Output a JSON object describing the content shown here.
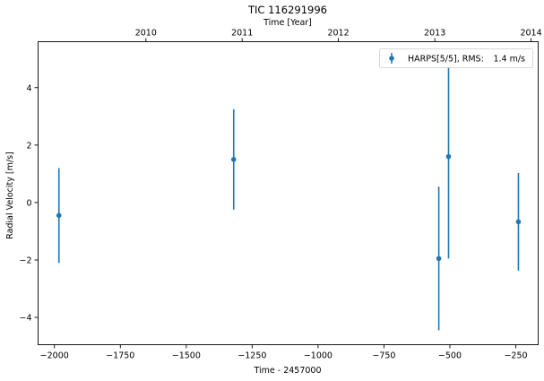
{
  "chart_data": {
    "type": "scatter",
    "title": "TIC 116291996",
    "xlabel": "Time - 2457000",
    "ylabel": "Radial Velocity [m/s]",
    "top_xlabel": "Time [Year]",
    "xlim": [
      -2062,
      -165
    ],
    "ylim": [
      -4.95,
      5.6
    ],
    "xticks": [
      -2000,
      -1750,
      -1500,
      -1250,
      -1000,
      -750,
      -500,
      -250
    ],
    "xtick_labels": [
      "−2000",
      "−1750",
      "−1500",
      "−1250",
      "−1000",
      "−750",
      "−500",
      "−250"
    ],
    "yticks": [
      -4,
      -2,
      0,
      2,
      4
    ],
    "ytick_labels": [
      "−4",
      "−2",
      "0",
      "2",
      "4"
    ],
    "top_ticks": [
      {
        "x": -1653,
        "label": "2010"
      },
      {
        "x": -1288,
        "label": "2011"
      },
      {
        "x": -923,
        "label": "2012"
      },
      {
        "x": -557,
        "label": "2013"
      },
      {
        "x": -192,
        "label": "2014"
      }
    ],
    "grid": false,
    "legend_position": "top-right",
    "series": [
      {
        "name": "HARPS[5/5], RMS:",
        "rms": "1.4 m/s",
        "color": "#1f77b4",
        "points": [
          {
            "x": -1983,
            "y": -0.45,
            "err": 1.65
          },
          {
            "x": -1320,
            "y": 1.5,
            "err": 1.75
          },
          {
            "x": -542,
            "y": -1.95,
            "err": 2.5
          },
          {
            "x": -505,
            "y": 1.6,
            "err": 3.55
          },
          {
            "x": -240,
            "y": -0.67,
            "err": 1.7
          }
        ]
      }
    ]
  }
}
